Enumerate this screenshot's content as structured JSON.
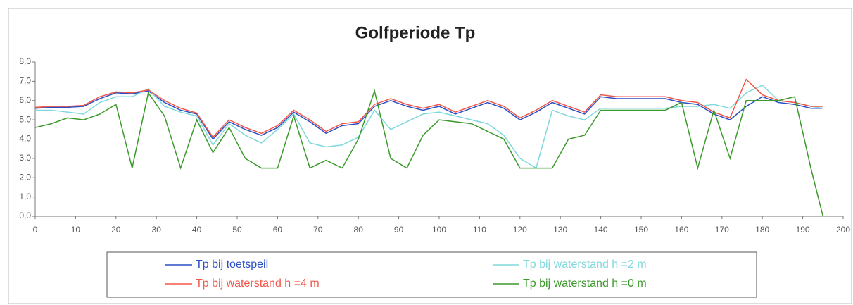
{
  "chart_data": {
    "type": "line",
    "title": "Golfperiode Tp",
    "x": [
      0,
      4,
      8,
      12,
      16,
      20,
      24,
      28,
      32,
      36,
      40,
      44,
      48,
      52,
      56,
      60,
      64,
      68,
      72,
      76,
      80,
      84,
      88,
      92,
      96,
      100,
      104,
      108,
      112,
      116,
      120,
      124,
      128,
      132,
      136,
      140,
      144,
      148,
      152,
      156,
      160,
      164,
      168,
      172,
      176,
      180,
      184,
      188,
      192,
      195
    ],
    "series": [
      {
        "name": "Tp bij toetspeil",
        "color": "#2a4fc4",
        "values": [
          5.6,
          5.65,
          5.65,
          5.7,
          6.1,
          6.4,
          6.35,
          6.5,
          5.9,
          5.5,
          5.3,
          4.0,
          4.9,
          4.5,
          4.2,
          4.6,
          5.4,
          4.9,
          4.3,
          4.7,
          4.8,
          5.7,
          6.0,
          5.7,
          5.5,
          5.7,
          5.3,
          5.6,
          5.9,
          5.6,
          5.0,
          5.4,
          5.9,
          5.6,
          5.3,
          6.2,
          6.1,
          6.1,
          6.1,
          6.1,
          5.9,
          5.8,
          5.3,
          5.0,
          5.7,
          6.2,
          5.9,
          5.8,
          5.6,
          5.6
        ]
      },
      {
        "name": "Tp bij waterstand h =2 m",
        "color": "#7fd8dc",
        "values": [
          5.5,
          5.5,
          5.4,
          5.3,
          5.9,
          6.2,
          6.2,
          6.6,
          5.7,
          5.4,
          5.2,
          3.7,
          4.8,
          4.2,
          3.8,
          4.5,
          5.3,
          3.8,
          3.6,
          3.7,
          4.1,
          5.5,
          4.5,
          4.9,
          5.3,
          5.4,
          5.2,
          5.0,
          4.8,
          4.2,
          3.0,
          2.5,
          5.5,
          5.2,
          5.0,
          5.6,
          5.6,
          5.6,
          5.6,
          5.6,
          5.7,
          5.7,
          5.8,
          5.6,
          6.4,
          6.8,
          6.0,
          5.9,
          5.7,
          5.6
        ]
      },
      {
        "name": "Tp bij waterstand h =4 m",
        "color": "#f2564a",
        "values": [
          5.65,
          5.7,
          5.7,
          5.75,
          6.2,
          6.45,
          6.4,
          6.55,
          6.0,
          5.6,
          5.35,
          4.1,
          5.0,
          4.6,
          4.3,
          4.7,
          5.5,
          5.0,
          4.4,
          4.8,
          4.9,
          5.8,
          6.1,
          5.8,
          5.6,
          5.8,
          5.4,
          5.7,
          6.0,
          5.7,
          5.1,
          5.5,
          6.0,
          5.7,
          5.4,
          6.3,
          6.2,
          6.2,
          6.2,
          6.2,
          6.0,
          5.9,
          5.4,
          5.1,
          7.1,
          6.3,
          6.0,
          5.9,
          5.7,
          5.7
        ]
      },
      {
        "name": "Tp bij waterstand h =0 m",
        "color": "#3a9a2a",
        "values": [
          4.6,
          4.8,
          5.1,
          5.0,
          5.3,
          5.8,
          2.5,
          6.4,
          5.2,
          2.5,
          5.0,
          3.3,
          4.6,
          3.0,
          2.5,
          2.5,
          5.2,
          2.5,
          2.9,
          2.5,
          4.0,
          6.5,
          3.0,
          2.5,
          4.2,
          5.0,
          4.9,
          4.8,
          4.4,
          4.0,
          2.5,
          2.5,
          2.5,
          4.0,
          4.2,
          5.5,
          5.5,
          5.5,
          5.5,
          5.5,
          5.9,
          2.5,
          5.5,
          3.0,
          6.0,
          6.0,
          6.0,
          6.2,
          2.5,
          0.0
        ]
      }
    ],
    "xlim": [
      0,
      200
    ],
    "xticks": [
      0,
      10,
      20,
      30,
      40,
      50,
      60,
      70,
      80,
      90,
      100,
      110,
      120,
      130,
      140,
      150,
      160,
      170,
      180,
      190,
      200
    ],
    "ylim": [
      0,
      8
    ],
    "yticks": [
      {
        "value": 0,
        "label": "0,0"
      },
      {
        "value": 1,
        "label": "1,0"
      },
      {
        "value": 2,
        "label": "2,0"
      },
      {
        "value": 3,
        "label": "3,0"
      },
      {
        "value": 4,
        "label": "4,0"
      },
      {
        "value": 5,
        "label": "5,0"
      },
      {
        "value": 6,
        "label": "6,0"
      },
      {
        "value": 7,
        "label": "7,0"
      },
      {
        "value": 8,
        "label": "8,0"
      }
    ],
    "grid": false
  }
}
